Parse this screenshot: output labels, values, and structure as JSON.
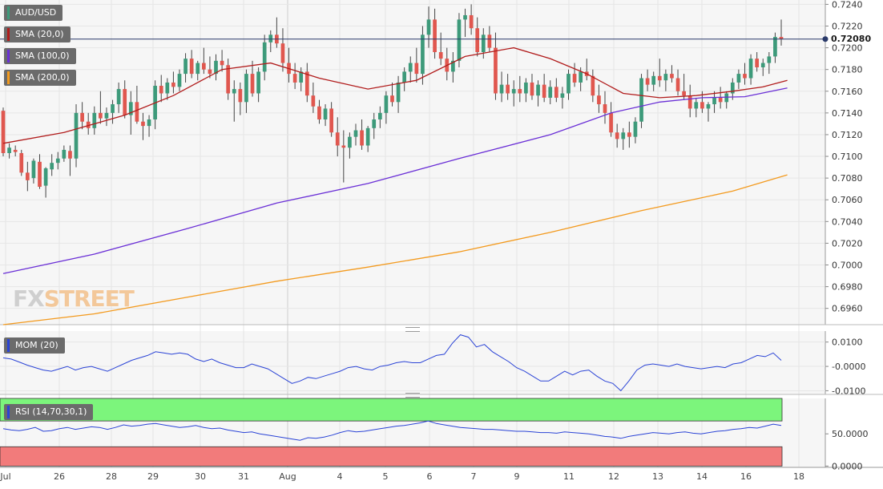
{
  "symbol": "AUD/USD",
  "watermark": {
    "fx": "FX",
    "street": "STREET"
  },
  "current_price_label": "0.72080",
  "colors": {
    "up_candle": "#3d9a7a",
    "down_candle": "#e0574f",
    "sma20": "#b11c1c",
    "sma100": "#6a2fd6",
    "sma200": "#f39a1e",
    "mom_line": "#2b44d6",
    "rsi_line": "#2b44d6",
    "rsi_overbought": "#7cf57c",
    "rsi_oversold": "#f27b7b"
  },
  "legend": {
    "symbol": "AUD/USD",
    "sma20": "SMA (20,0)",
    "sma100": "SMA (100,0)",
    "sma200": "SMA (200,0)",
    "mom": "MOM (20)",
    "rsi": "RSI (14,70,30,1)"
  },
  "chart_data": [
    {
      "type": "candlestick",
      "title": "AUD/USD",
      "timeframe_ticks": [
        "Jul",
        "26",
        "28",
        "29",
        "30",
        "31",
        "Aug",
        "4",
        "5",
        "6",
        "7",
        "9",
        "11",
        "12",
        "13",
        "14",
        "16",
        "18"
      ],
      "y_ticks": [
        "0.7240",
        "0.7220",
        "0.7200",
        "0.7180",
        "0.7160",
        "0.7140",
        "0.7120",
        "0.7100",
        "0.7080",
        "0.7060",
        "0.7040",
        "0.7020",
        "0.7000",
        "0.6980",
        "0.6960"
      ],
      "ylim": [
        0.6945,
        0.7244
      ],
      "current_price": 0.7208,
      "candles_ohlc": [
        [
          0.7142,
          0.7145,
          0.71,
          0.7103
        ],
        [
          0.7103,
          0.7112,
          0.7098,
          0.7108
        ],
        [
          0.7106,
          0.711,
          0.71,
          0.7104
        ],
        [
          0.7103,
          0.7106,
          0.7082,
          0.7085
        ],
        [
          0.7085,
          0.7095,
          0.7068,
          0.7078
        ],
        [
          0.708,
          0.7098,
          0.7075,
          0.7096
        ],
        [
          0.7095,
          0.7102,
          0.707,
          0.7072
        ],
        [
          0.7073,
          0.709,
          0.7062,
          0.7089
        ],
        [
          0.7088,
          0.7102,
          0.7082,
          0.7094
        ],
        [
          0.7094,
          0.7104,
          0.7088,
          0.7098
        ],
        [
          0.7098,
          0.711,
          0.7095,
          0.7106
        ],
        [
          0.7105,
          0.711,
          0.7082,
          0.7098
        ],
        [
          0.7098,
          0.7148,
          0.709,
          0.714
        ],
        [
          0.714,
          0.715,
          0.7125,
          0.7132
        ],
        [
          0.7132,
          0.714,
          0.712,
          0.7126
        ],
        [
          0.7126,
          0.7146,
          0.712,
          0.714
        ],
        [
          0.714,
          0.716,
          0.713,
          0.7135
        ],
        [
          0.7135,
          0.7145,
          0.7128,
          0.714
        ],
        [
          0.714,
          0.7152,
          0.713,
          0.7148
        ],
        [
          0.7148,
          0.7168,
          0.714,
          0.7162
        ],
        [
          0.7162,
          0.717,
          0.7135,
          0.7138
        ],
        [
          0.7138,
          0.716,
          0.712,
          0.715
        ],
        [
          0.715,
          0.7165,
          0.713,
          0.7132
        ],
        [
          0.7132,
          0.714,
          0.7115,
          0.7128
        ],
        [
          0.7128,
          0.7138,
          0.7118,
          0.7134
        ],
        [
          0.7134,
          0.717,
          0.7125,
          0.7165
        ],
        [
          0.7165,
          0.7175,
          0.715,
          0.7158
        ],
        [
          0.7158,
          0.7172,
          0.7152,
          0.7168
        ],
        [
          0.7168,
          0.7178,
          0.7158,
          0.7164
        ],
        [
          0.7164,
          0.718,
          0.716,
          0.7176
        ],
        [
          0.7176,
          0.7195,
          0.7168,
          0.719
        ],
        [
          0.719,
          0.7198,
          0.7172,
          0.7176
        ],
        [
          0.7176,
          0.7188,
          0.717,
          0.7186
        ],
        [
          0.7186,
          0.72,
          0.7176,
          0.718
        ],
        [
          0.718,
          0.7192,
          0.7172,
          0.7176
        ],
        [
          0.7176,
          0.7194,
          0.717,
          0.7188
        ],
        [
          0.7188,
          0.7198,
          0.7178,
          0.7184
        ],
        [
          0.7184,
          0.719,
          0.7152,
          0.7158
        ],
        [
          0.7158,
          0.717,
          0.7132,
          0.7162
        ],
        [
          0.7162,
          0.7168,
          0.7138,
          0.715
        ],
        [
          0.715,
          0.718,
          0.714,
          0.7176
        ],
        [
          0.7176,
          0.7188,
          0.7155,
          0.7158
        ],
        [
          0.7158,
          0.7182,
          0.715,
          0.7178
        ],
        [
          0.7178,
          0.7212,
          0.717,
          0.7205
        ],
        [
          0.7205,
          0.7216,
          0.7196,
          0.7212
        ],
        [
          0.7212,
          0.7228,
          0.72,
          0.7204
        ],
        [
          0.7204,
          0.7218,
          0.7178,
          0.7186
        ],
        [
          0.7186,
          0.72,
          0.7168,
          0.7176
        ],
        [
          0.7176,
          0.7186,
          0.7162,
          0.7168
        ],
        [
          0.7168,
          0.7182,
          0.716,
          0.7178
        ],
        [
          0.7178,
          0.7186,
          0.715,
          0.7156
        ],
        [
          0.7156,
          0.7168,
          0.714,
          0.7146
        ],
        [
          0.7146,
          0.7152,
          0.713,
          0.7134
        ],
        [
          0.7134,
          0.7148,
          0.7128,
          0.7144
        ],
        [
          0.7144,
          0.715,
          0.7118,
          0.7122
        ],
        [
          0.7122,
          0.7136,
          0.71,
          0.711
        ],
        [
          0.711,
          0.7124,
          0.7076,
          0.7108
        ],
        [
          0.7108,
          0.7122,
          0.7098,
          0.7118
        ],
        [
          0.7118,
          0.713,
          0.711,
          0.7124
        ],
        [
          0.7124,
          0.7134,
          0.7106,
          0.711
        ],
        [
          0.711,
          0.7128,
          0.7104,
          0.7126
        ],
        [
          0.7126,
          0.714,
          0.7116,
          0.7134
        ],
        [
          0.7134,
          0.7146,
          0.7126,
          0.714
        ],
        [
          0.714,
          0.716,
          0.713,
          0.7156
        ],
        [
          0.7156,
          0.7168,
          0.7146,
          0.715
        ],
        [
          0.715,
          0.7174,
          0.714,
          0.7168
        ],
        [
          0.7168,
          0.7182,
          0.716,
          0.7178
        ],
        [
          0.7178,
          0.7192,
          0.7168,
          0.7186
        ],
        [
          0.7186,
          0.72,
          0.7168,
          0.7176
        ],
        [
          0.7176,
          0.722,
          0.7166,
          0.7212
        ],
        [
          0.7212,
          0.7238,
          0.72,
          0.7226
        ],
        [
          0.7226,
          0.7236,
          0.719,
          0.7196
        ],
        [
          0.7196,
          0.7214,
          0.7184,
          0.719
        ],
        [
          0.719,
          0.72,
          0.717,
          0.7178
        ],
        [
          0.7178,
          0.7196,
          0.7168,
          0.7188
        ],
        [
          0.7188,
          0.7232,
          0.7182,
          0.7226
        ],
        [
          0.7226,
          0.7236,
          0.721,
          0.723
        ],
        [
          0.723,
          0.724,
          0.7212,
          0.7218
        ],
        [
          0.7218,
          0.7228,
          0.7192,
          0.7196
        ],
        [
          0.7196,
          0.7218,
          0.719,
          0.7212
        ],
        [
          0.7212,
          0.722,
          0.7196,
          0.72
        ],
        [
          0.72,
          0.7214,
          0.7152,
          0.7158
        ],
        [
          0.7158,
          0.7178,
          0.715,
          0.7166
        ],
        [
          0.7166,
          0.7176,
          0.7152,
          0.7158
        ],
        [
          0.7158,
          0.717,
          0.7146,
          0.7162
        ],
        [
          0.7162,
          0.7174,
          0.715,
          0.7158
        ],
        [
          0.7158,
          0.7172,
          0.715,
          0.7168
        ],
        [
          0.7168,
          0.7176,
          0.7152,
          0.7156
        ],
        [
          0.7156,
          0.717,
          0.7146,
          0.7166
        ],
        [
          0.7166,
          0.7176,
          0.715,
          0.7154
        ],
        [
          0.7154,
          0.717,
          0.7148,
          0.7164
        ],
        [
          0.7164,
          0.7172,
          0.715,
          0.7154
        ],
        [
          0.7154,
          0.7164,
          0.7144,
          0.7158
        ],
        [
          0.7158,
          0.718,
          0.7152,
          0.7176
        ],
        [
          0.7176,
          0.7186,
          0.7164,
          0.7168
        ],
        [
          0.7168,
          0.7182,
          0.716,
          0.7178
        ],
        [
          0.7178,
          0.719,
          0.717,
          0.7174
        ],
        [
          0.7174,
          0.718,
          0.715,
          0.7156
        ],
        [
          0.7156,
          0.7166,
          0.714,
          0.7148
        ],
        [
          0.7148,
          0.716,
          0.713,
          0.714
        ],
        [
          0.714,
          0.715,
          0.7118,
          0.7122
        ],
        [
          0.7122,
          0.713,
          0.7108,
          0.7116
        ],
        [
          0.7116,
          0.7126,
          0.7106,
          0.7122
        ],
        [
          0.7122,
          0.7132,
          0.7108,
          0.7118
        ],
        [
          0.7118,
          0.7136,
          0.7112,
          0.7132
        ],
        [
          0.7132,
          0.7176,
          0.7126,
          0.7172
        ],
        [
          0.7172,
          0.718,
          0.716,
          0.7166
        ],
        [
          0.7166,
          0.7178,
          0.716,
          0.7174
        ],
        [
          0.7174,
          0.719,
          0.7164,
          0.717
        ],
        [
          0.717,
          0.718,
          0.716,
          0.7176
        ],
        [
          0.7176,
          0.7184,
          0.7168,
          0.7172
        ],
        [
          0.7172,
          0.718,
          0.7156,
          0.716
        ],
        [
          0.716,
          0.7176,
          0.7152,
          0.7156
        ],
        [
          0.7156,
          0.7166,
          0.7136,
          0.7144
        ],
        [
          0.7144,
          0.7154,
          0.7136,
          0.715
        ],
        [
          0.715,
          0.716,
          0.714,
          0.7144
        ],
        [
          0.7144,
          0.715,
          0.7132,
          0.7148
        ],
        [
          0.7148,
          0.716,
          0.714,
          0.7154
        ],
        [
          0.7154,
          0.7164,
          0.7144,
          0.715
        ],
        [
          0.715,
          0.716,
          0.7144,
          0.7158
        ],
        [
          0.7158,
          0.7172,
          0.7152,
          0.7168
        ],
        [
          0.7168,
          0.718,
          0.7162,
          0.7176
        ],
        [
          0.7176,
          0.7186,
          0.7166,
          0.7172
        ],
        [
          0.7172,
          0.7194,
          0.7166,
          0.719
        ],
        [
          0.719,
          0.7196,
          0.7178,
          0.7182
        ],
        [
          0.7182,
          0.719,
          0.7174,
          0.7186
        ],
        [
          0.7186,
          0.7196,
          0.7176,
          0.7192
        ],
        [
          0.7192,
          0.7214,
          0.7186,
          0.721
        ],
        [
          0.721,
          0.7226,
          0.7202,
          0.7208
        ]
      ],
      "sma": [
        {
          "name": "SMA (20,0)",
          "points": [
            [
              0,
              0.7112
            ],
            [
              10,
              0.7122
            ],
            [
              20,
              0.7138
            ],
            [
              28,
              0.7156
            ],
            [
              36,
              0.718
            ],
            [
              44,
              0.7186
            ],
            [
              52,
              0.7172
            ],
            [
              60,
              0.7162
            ],
            [
              68,
              0.717
            ],
            [
              76,
              0.7192
            ],
            [
              84,
              0.72
            ],
            [
              90,
              0.719
            ],
            [
              96,
              0.7176
            ],
            [
              102,
              0.7158
            ],
            [
              108,
              0.7154
            ],
            [
              114,
              0.7156
            ],
            [
              120,
              0.716
            ],
            [
              125,
              0.7164
            ],
            [
              129,
              0.717
            ]
          ]
        },
        {
          "name": "SMA (100,0)",
          "points": [
            [
              0,
              0.6992
            ],
            [
              15,
              0.701
            ],
            [
              30,
              0.7033
            ],
            [
              45,
              0.7057
            ],
            [
              60,
              0.7075
            ],
            [
              75,
              0.7098
            ],
            [
              90,
              0.712
            ],
            [
              100,
              0.714
            ],
            [
              108,
              0.715
            ],
            [
              115,
              0.7154
            ],
            [
              122,
              0.7155
            ],
            [
              129,
              0.7163
            ]
          ]
        },
        {
          "name": "SMA (200,0)",
          "points": [
            [
              0,
              0.6945
            ],
            [
              15,
              0.6955
            ],
            [
              30,
              0.697
            ],
            [
              45,
              0.6985
            ],
            [
              60,
              0.6998
            ],
            [
              75,
              0.7012
            ],
            [
              90,
              0.703
            ],
            [
              105,
              0.705
            ],
            [
              120,
              0.7068
            ],
            [
              129,
              0.7083
            ]
          ]
        }
      ]
    },
    {
      "type": "line",
      "title": "MOM (20)",
      "y_ticks": [
        "0.0100",
        "-0.0000",
        "-0.0100"
      ],
      "ylim": [
        -0.0115,
        0.0145
      ],
      "values": [
        0.0035,
        0.003,
        0.0018,
        0.0005,
        -0.0005,
        -0.0015,
        -0.002,
        -0.001,
        0.0,
        -0.0015,
        -0.0005,
        0.0,
        -0.001,
        -0.002,
        -0.0005,
        0.001,
        0.0025,
        0.0035,
        0.0045,
        0.006,
        0.0055,
        0.005,
        0.0055,
        0.005,
        0.003,
        0.002,
        0.003,
        0.0015,
        0.0005,
        -0.0005,
        -0.0005,
        0.001,
        0.0,
        -0.001,
        -0.003,
        -0.005,
        -0.007,
        -0.006,
        -0.0045,
        -0.005,
        -0.004,
        -0.003,
        -0.002,
        -0.0005,
        0.0,
        -0.001,
        -0.0015,
        0.0,
        0.0005,
        0.0015,
        0.002,
        0.0015,
        0.0015,
        0.003,
        0.0045,
        0.005,
        0.0095,
        0.013,
        0.012,
        0.008,
        0.009,
        0.006,
        0.004,
        0.002,
        -0.0005,
        -0.002,
        -0.004,
        -0.006,
        -0.006,
        -0.004,
        -0.002,
        -0.0035,
        -0.002,
        -0.0015,
        -0.004,
        -0.006,
        -0.007,
        -0.01,
        -0.006,
        -0.0015,
        0.0005,
        0.001,
        0.0005,
        0.0,
        0.001,
        0.0,
        -0.0005,
        -0.001,
        -0.0005,
        0.0,
        -0.0005,
        0.001,
        0.0015,
        0.003,
        0.0045,
        0.004,
        0.0055,
        0.0025
      ],
      "zero_line": true
    },
    {
      "type": "line",
      "title": "RSI (14,70,30,1)",
      "y_ticks": [
        "50.0000",
        "0.0000"
      ],
      "ylim": [
        -2,
        105
      ],
      "overbought": 70,
      "oversold": 30,
      "values": [
        58,
        56,
        55,
        57,
        60,
        54,
        55,
        58,
        60,
        57,
        59,
        61,
        60,
        57,
        60,
        64,
        62,
        63,
        65,
        66,
        64,
        62,
        60,
        61,
        63,
        60,
        58,
        59,
        56,
        54,
        52,
        53,
        50,
        48,
        46,
        44,
        42,
        40,
        44,
        43,
        45,
        48,
        52,
        55,
        53,
        54,
        56,
        58,
        60,
        62,
        63,
        65,
        67,
        70,
        66,
        64,
        62,
        60,
        59,
        58,
        57,
        57,
        56,
        55,
        54,
        54,
        53,
        52,
        52,
        51,
        53,
        52,
        51,
        50,
        48,
        46,
        45,
        43,
        46,
        48,
        50,
        52,
        51,
        50,
        52,
        53,
        51,
        50,
        52,
        54,
        55,
        57,
        58,
        60,
        59,
        62,
        65,
        63
      ]
    }
  ]
}
